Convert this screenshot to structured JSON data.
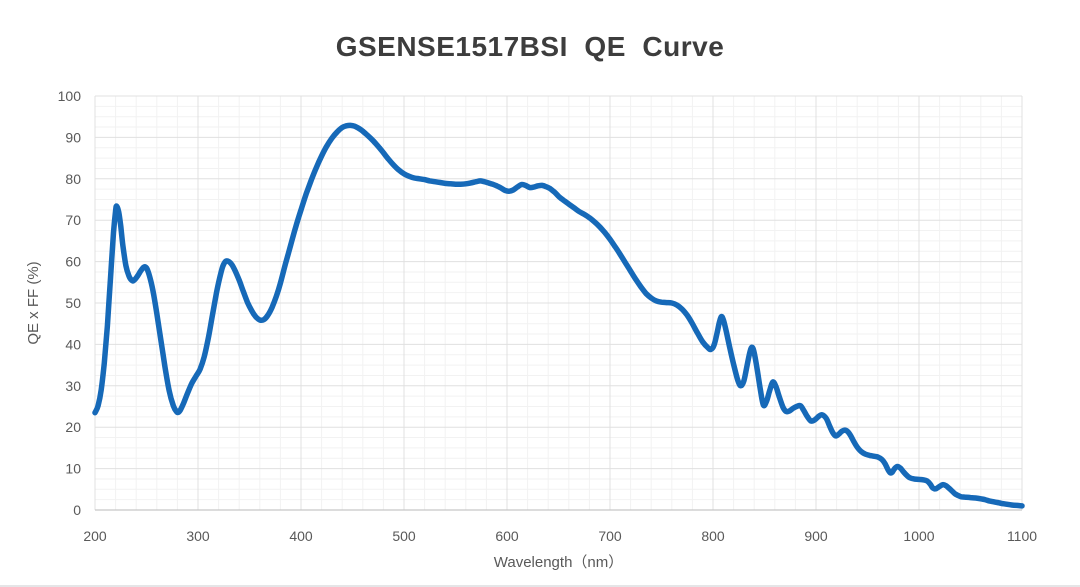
{
  "colors": {
    "line": "#1669b8",
    "grid_major": "#e0e0e0",
    "grid_minor": "#f2f2f2",
    "axis": "#c6c6c6",
    "tick_text": "#595959",
    "title_text": "#3d3d3d",
    "divider": "#e5e5e7"
  },
  "chart_data": {
    "type": "line",
    "title": "GSENSE1517BSI  QE  Curve",
    "xlabel": "Wavelength（nm）",
    "ylabel": "QE x FF (%)",
    "xlim": [
      200,
      1100
    ],
    "ylim": [
      0,
      100
    ],
    "x_ticks": [
      200,
      300,
      400,
      500,
      600,
      700,
      800,
      900,
      1000,
      1100
    ],
    "y_ticks": [
      0,
      10,
      20,
      30,
      40,
      50,
      60,
      70,
      80,
      90,
      100
    ],
    "x_minor_step": 20,
    "y_minor_step": 2.5,
    "grid": "both",
    "legend": "none",
    "series": [
      {
        "name": "QE x FF",
        "points": [
          [
            200,
            23.5
          ],
          [
            203,
            25.2
          ],
          [
            206,
            29
          ],
          [
            209,
            35.5
          ],
          [
            212,
            44.5
          ],
          [
            215,
            56
          ],
          [
            218,
            67
          ],
          [
            220,
            72.3
          ],
          [
            221,
            73.4
          ],
          [
            223,
            72
          ],
          [
            225,
            68.5
          ],
          [
            227,
            64
          ],
          [
            230,
            59
          ],
          [
            233,
            56.5
          ],
          [
            236,
            55.4
          ],
          [
            238,
            55.5
          ],
          [
            241,
            56.4
          ],
          [
            244,
            57.6
          ],
          [
            247,
            58.6
          ],
          [
            249,
            58.7
          ],
          [
            251,
            58
          ],
          [
            254,
            55.5
          ],
          [
            257,
            52
          ],
          [
            260,
            47.5
          ],
          [
            264,
            41
          ],
          [
            268,
            34.5
          ],
          [
            272,
            28.8
          ],
          [
            276,
            25.2
          ],
          [
            279,
            23.8
          ],
          [
            281,
            23.6
          ],
          [
            283,
            24.2
          ],
          [
            286,
            25.8
          ],
          [
            290,
            28.3
          ],
          [
            294,
            30.6
          ],
          [
            298,
            32.3
          ],
          [
            302,
            34
          ],
          [
            306,
            37
          ],
          [
            310,
            41.5
          ],
          [
            314,
            47
          ],
          [
            318,
            52.5
          ],
          [
            321,
            56
          ],
          [
            324,
            58.8
          ],
          [
            327,
            60.1
          ],
          [
            330,
            60
          ],
          [
            333,
            59.2
          ],
          [
            336,
            57.8
          ],
          [
            340,
            55.5
          ],
          [
            344,
            52.8
          ],
          [
            348,
            50.2
          ],
          [
            352,
            48.2
          ],
          [
            356,
            46.7
          ],
          [
            360,
            45.9
          ],
          [
            364,
            46
          ],
          [
            368,
            47.1
          ],
          [
            372,
            49
          ],
          [
            376,
            51.6
          ],
          [
            380,
            54.8
          ],
          [
            385,
            59.5
          ],
          [
            390,
            64
          ],
          [
            395,
            68.5
          ],
          [
            400,
            72.5
          ],
          [
            405,
            76.3
          ],
          [
            410,
            79.7
          ],
          [
            415,
            82.8
          ],
          [
            420,
            85.5
          ],
          [
            425,
            87.9
          ],
          [
            430,
            89.8
          ],
          [
            435,
            91.3
          ],
          [
            440,
            92.4
          ],
          [
            444,
            92.8
          ],
          [
            448,
            92.9
          ],
          [
            452,
            92.7
          ],
          [
            456,
            92.2
          ],
          [
            460,
            91.5
          ],
          [
            465,
            90.4
          ],
          [
            470,
            89.2
          ],
          [
            475,
            87.8
          ],
          [
            480,
            86.3
          ],
          [
            485,
            84.7
          ],
          [
            490,
            83.3
          ],
          [
            495,
            82.1
          ],
          [
            500,
            81.2
          ],
          [
            505,
            80.6
          ],
          [
            510,
            80.2
          ],
          [
            515,
            80
          ],
          [
            520,
            79.8
          ],
          [
            525,
            79.5
          ],
          [
            530,
            79.3
          ],
          [
            535,
            79.1
          ],
          [
            540,
            78.9
          ],
          [
            545,
            78.8
          ],
          [
            550,
            78.7
          ],
          [
            555,
            78.7
          ],
          [
            560,
            78.8
          ],
          [
            565,
            79
          ],
          [
            570,
            79.3
          ],
          [
            574,
            79.5
          ],
          [
            578,
            79.3
          ],
          [
            582,
            79
          ],
          [
            586,
            78.7
          ],
          [
            590,
            78.3
          ],
          [
            594,
            77.8
          ],
          [
            598,
            77.2
          ],
          [
            602,
            77
          ],
          [
            606,
            77.3
          ],
          [
            610,
            78
          ],
          [
            614,
            78.6
          ],
          [
            618,
            78.4
          ],
          [
            622,
            77.9
          ],
          [
            626,
            78
          ],
          [
            630,
            78.3
          ],
          [
            634,
            78.4
          ],
          [
            638,
            78.1
          ],
          [
            642,
            77.6
          ],
          [
            646,
            76.8
          ],
          [
            650,
            75.8
          ],
          [
            655,
            74.8
          ],
          [
            660,
            73.9
          ],
          [
            665,
            73
          ],
          [
            670,
            72.1
          ],
          [
            675,
            71.4
          ],
          [
            680,
            70.6
          ],
          [
            685,
            69.6
          ],
          [
            690,
            68.4
          ],
          [
            695,
            67
          ],
          [
            700,
            65.4
          ],
          [
            705,
            63.6
          ],
          [
            710,
            61.7
          ],
          [
            715,
            59.7
          ],
          [
            720,
            57.7
          ],
          [
            725,
            55.7
          ],
          [
            730,
            53.9
          ],
          [
            735,
            52.3
          ],
          [
            740,
            51.2
          ],
          [
            745,
            50.5
          ],
          [
            750,
            50.2
          ],
          [
            755,
            50.1
          ],
          [
            760,
            50
          ],
          [
            765,
            49.5
          ],
          [
            770,
            48.5
          ],
          [
            775,
            47
          ],
          [
            780,
            45
          ],
          [
            785,
            42.7
          ],
          [
            790,
            40.6
          ],
          [
            795,
            39.2
          ],
          [
            798,
            38.8
          ],
          [
            801,
            39.8
          ],
          [
            804,
            42.8
          ],
          [
            806,
            45.2
          ],
          [
            808,
            46.7
          ],
          [
            810,
            46
          ],
          [
            813,
            43
          ],
          [
            816,
            39.5
          ],
          [
            820,
            35.2
          ],
          [
            824,
            31.4
          ],
          [
            827,
            30
          ],
          [
            830,
            31.2
          ],
          [
            833,
            34.8
          ],
          [
            836,
            38.3
          ],
          [
            838,
            39.3
          ],
          [
            840,
            38
          ],
          [
            843,
            33.8
          ],
          [
            846,
            29
          ],
          [
            849,
            25.3
          ],
          [
            852,
            26.3
          ],
          [
            855,
            28.8
          ],
          [
            858,
            30.9
          ],
          [
            861,
            29.9
          ],
          [
            864,
            27.6
          ],
          [
            868,
            24.8
          ],
          [
            871,
            23.8
          ],
          [
            874,
            23.9
          ],
          [
            878,
            24.6
          ],
          [
            882,
            25.1
          ],
          [
            885,
            25.2
          ],
          [
            888,
            24.1
          ],
          [
            891,
            22.8
          ],
          [
            895,
            21.5
          ],
          [
            899,
            21.8
          ],
          [
            903,
            22.7
          ],
          [
            906,
            23
          ],
          [
            910,
            22.1
          ],
          [
            913,
            20.4
          ],
          [
            916,
            18.8
          ],
          [
            919,
            17.9
          ],
          [
            922,
            18.3
          ],
          [
            925,
            19
          ],
          [
            928,
            19.3
          ],
          [
            931,
            18.9
          ],
          [
            934,
            17.8
          ],
          [
            937,
            16.4
          ],
          [
            940,
            15.2
          ],
          [
            944,
            14.1
          ],
          [
            948,
            13.5
          ],
          [
            952,
            13.2
          ],
          [
            956,
            13
          ],
          [
            960,
            12.8
          ],
          [
            964,
            12.2
          ],
          [
            967,
            11.2
          ],
          [
            970,
            9.7
          ],
          [
            972,
            9
          ],
          [
            974,
            9.1
          ],
          [
            976,
            9.9
          ],
          [
            979,
            10.5
          ],
          [
            982,
            10.1
          ],
          [
            985,
            9.2
          ],
          [
            988,
            8.4
          ],
          [
            991,
            7.8
          ],
          [
            995,
            7.5
          ],
          [
            1000,
            7.4
          ],
          [
            1004,
            7.3
          ],
          [
            1008,
            7
          ],
          [
            1011,
            6.2
          ],
          [
            1013,
            5.4
          ],
          [
            1015,
            5.1
          ],
          [
            1017,
            5.2
          ],
          [
            1020,
            5.7
          ],
          [
            1023,
            6.1
          ],
          [
            1026,
            5.9
          ],
          [
            1029,
            5.3
          ],
          [
            1032,
            4.6
          ],
          [
            1035,
            3.9
          ],
          [
            1038,
            3.5
          ],
          [
            1041,
            3.2
          ],
          [
            1045,
            3.1
          ],
          [
            1050,
            3
          ],
          [
            1055,
            2.9
          ],
          [
            1060,
            2.7
          ],
          [
            1064,
            2.5
          ],
          [
            1068,
            2.2
          ],
          [
            1072,
            2
          ],
          [
            1076,
            1.8
          ],
          [
            1080,
            1.6
          ],
          [
            1085,
            1.4
          ],
          [
            1090,
            1.2
          ],
          [
            1095,
            1.1
          ],
          [
            1100,
            1
          ]
        ]
      }
    ]
  }
}
